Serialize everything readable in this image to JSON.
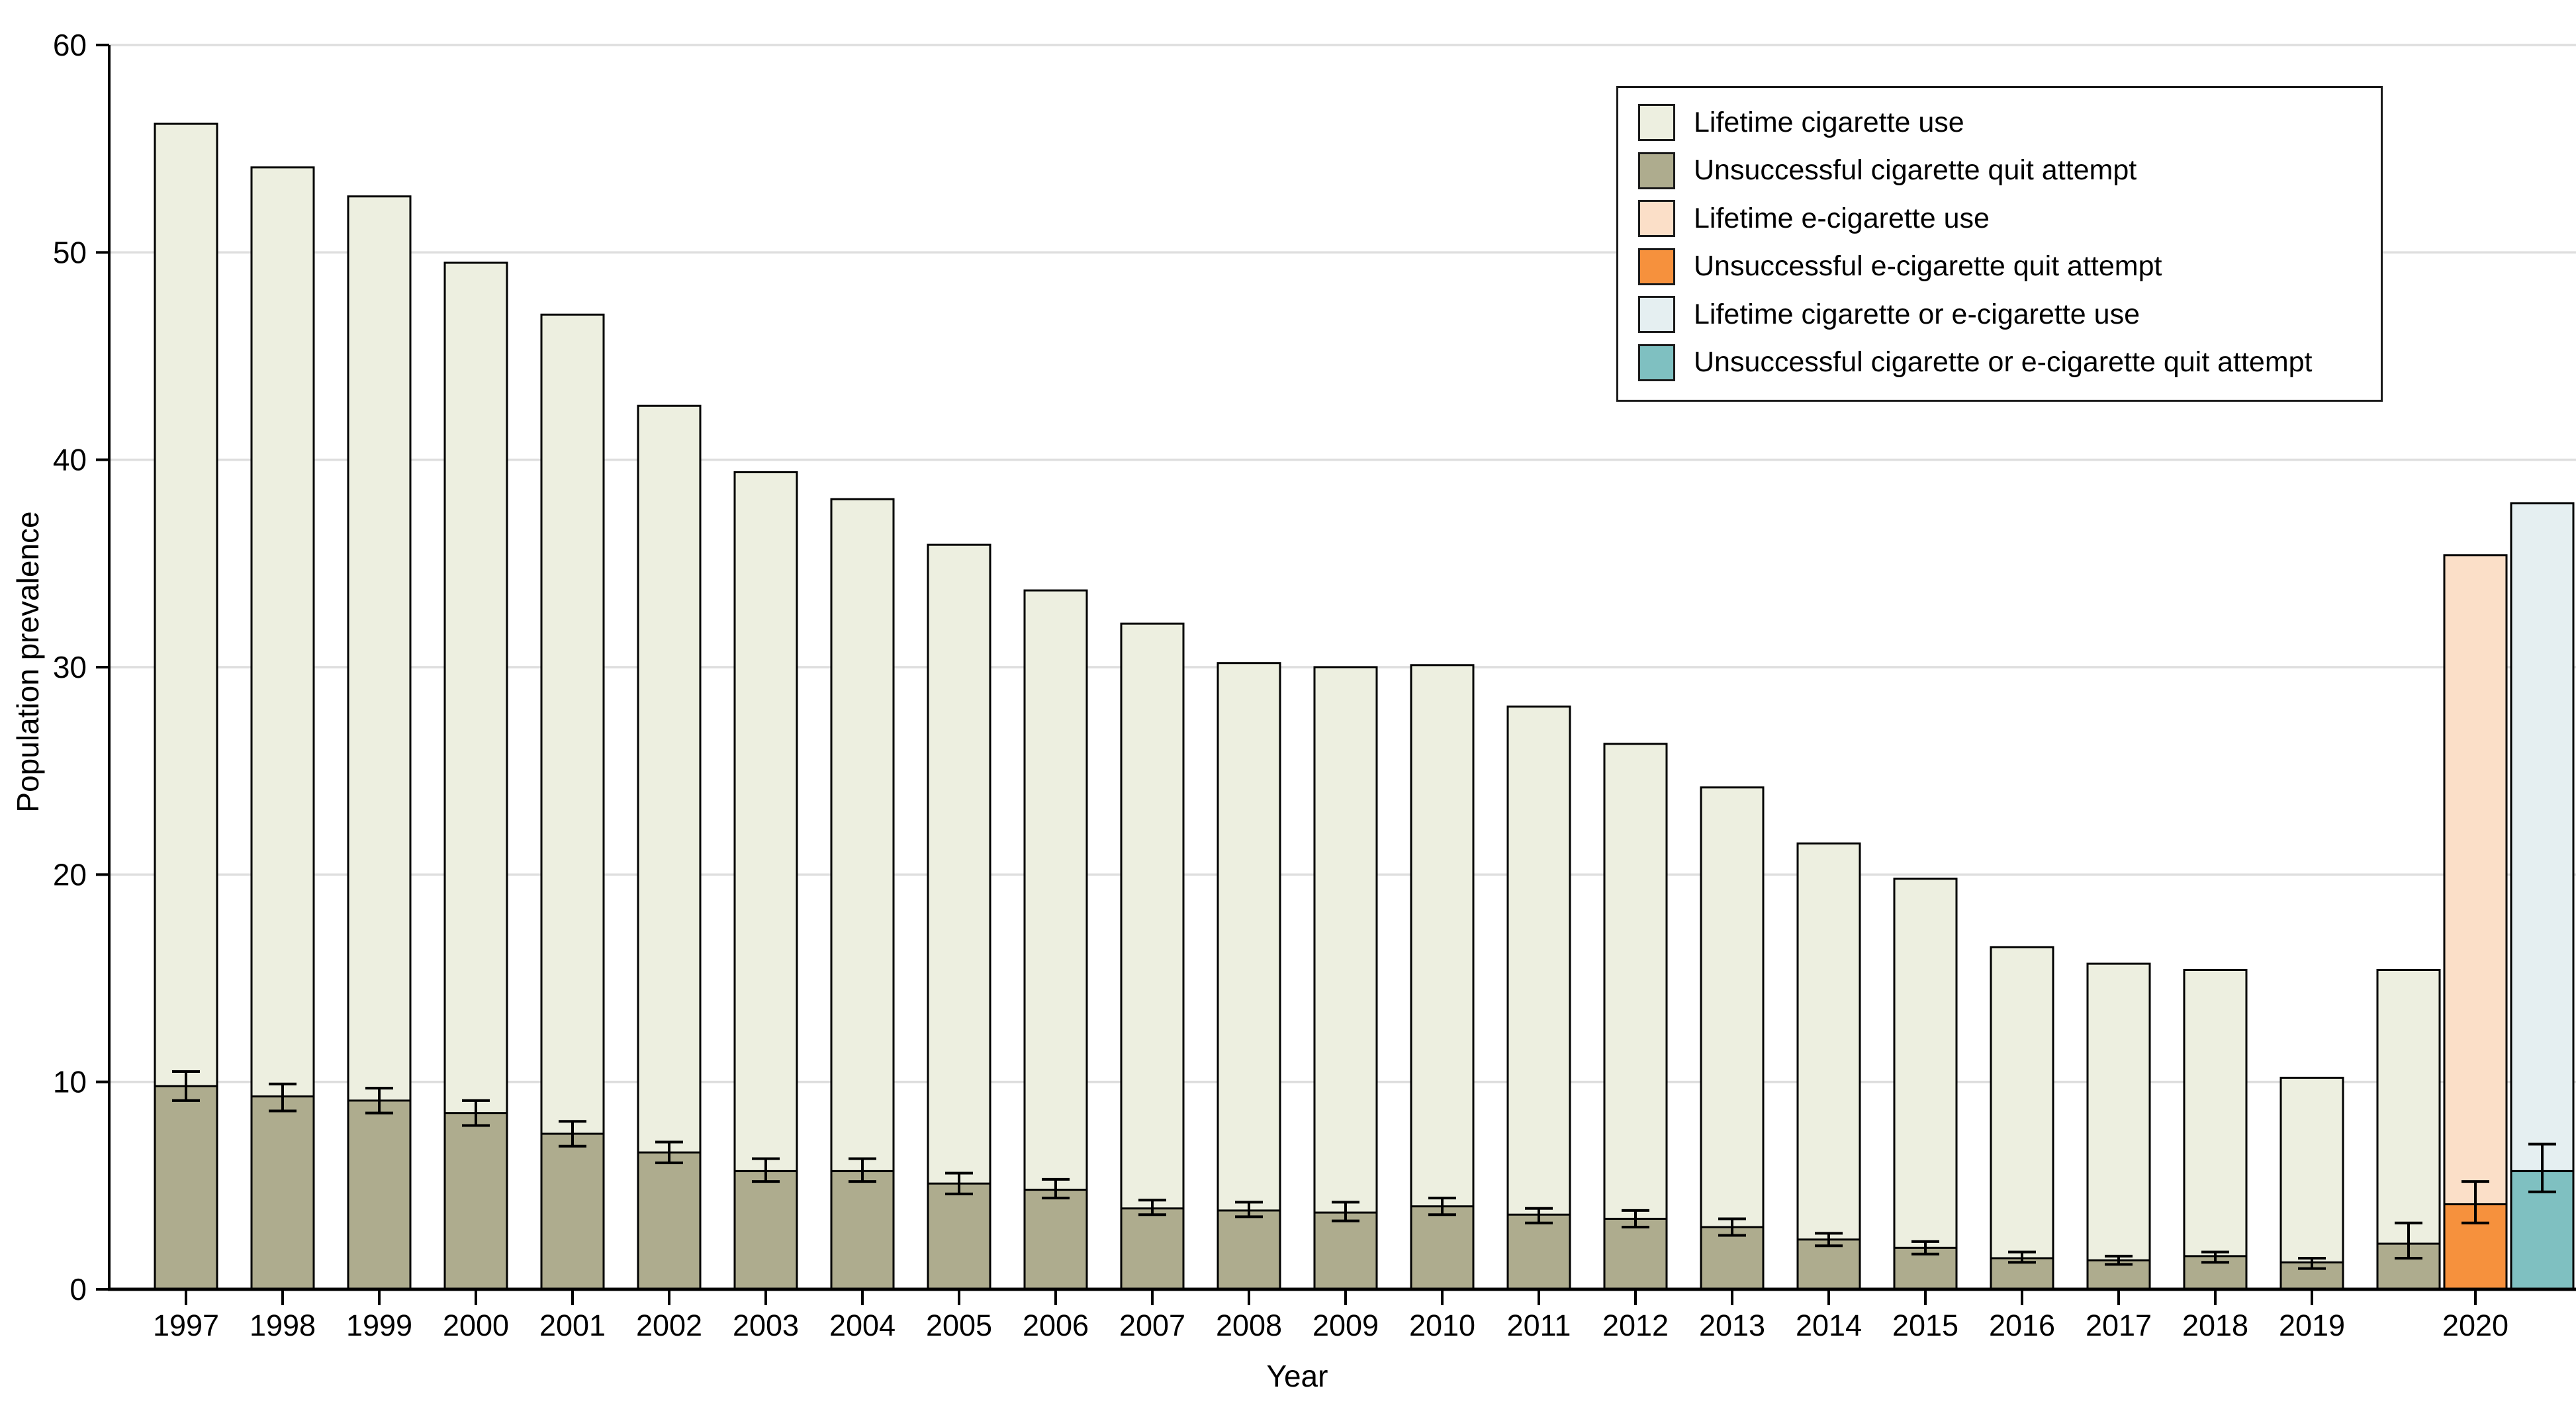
{
  "chart_data": {
    "type": "bar",
    "subtype": "stacked-with-error-bars",
    "title": "",
    "xlabel": "Year",
    "ylabel": "Population prevalence",
    "ylim": [
      0,
      60
    ],
    "yticks": [
      0,
      10,
      20,
      30,
      40,
      50,
      60
    ],
    "grid": true,
    "legend_position": "top-right",
    "categories": [
      "1997",
      "1998",
      "1999",
      "2000",
      "2001",
      "2002",
      "2003",
      "2004",
      "2005",
      "2006",
      "2007",
      "2008",
      "2009",
      "2010",
      "2011",
      "2012",
      "2013",
      "2014",
      "2015",
      "2016",
      "2017",
      "2018",
      "2019",
      "2020"
    ],
    "legend": [
      {
        "label": "Lifetime cigarette use",
        "color": "#EDEFE0"
      },
      {
        "label": "Unsuccessful cigarette quit attempt",
        "color": "#AEAC8E"
      },
      {
        "label": "Lifetime e-cigarette use",
        "color": "#FBDFC8"
      },
      {
        "label": "Unsuccessful e-cigarette quit attempt",
        "color": "#F6913D"
      },
      {
        "label": "Lifetime cigarette or e-cigarette use",
        "color": "#E5EFF1"
      },
      {
        "label": "Unsuccessful cigarette or e-cigarette quit attempt",
        "color": "#7FC0C1"
      }
    ],
    "bars": [
      {
        "year": "1997",
        "group": "cigarette",
        "lifetime_use": 56.2,
        "unsuccessful_quit": 9.8,
        "quit_ci": [
          9.1,
          10.5
        ]
      },
      {
        "year": "1998",
        "group": "cigarette",
        "lifetime_use": 54.1,
        "unsuccessful_quit": 9.3,
        "quit_ci": [
          8.6,
          9.9
        ]
      },
      {
        "year": "1999",
        "group": "cigarette",
        "lifetime_use": 52.7,
        "unsuccessful_quit": 9.1,
        "quit_ci": [
          8.5,
          9.7
        ]
      },
      {
        "year": "2000",
        "group": "cigarette",
        "lifetime_use": 49.5,
        "unsuccessful_quit": 8.5,
        "quit_ci": [
          7.9,
          9.1
        ]
      },
      {
        "year": "2001",
        "group": "cigarette",
        "lifetime_use": 47.0,
        "unsuccessful_quit": 7.5,
        "quit_ci": [
          6.9,
          8.1
        ]
      },
      {
        "year": "2002",
        "group": "cigarette",
        "lifetime_use": 42.6,
        "unsuccessful_quit": 6.6,
        "quit_ci": [
          6.1,
          7.1
        ]
      },
      {
        "year": "2003",
        "group": "cigarette",
        "lifetime_use": 39.4,
        "unsuccessful_quit": 5.7,
        "quit_ci": [
          5.2,
          6.3
        ]
      },
      {
        "year": "2004",
        "group": "cigarette",
        "lifetime_use": 38.1,
        "unsuccessful_quit": 5.7,
        "quit_ci": [
          5.2,
          6.3
        ]
      },
      {
        "year": "2005",
        "group": "cigarette",
        "lifetime_use": 35.9,
        "unsuccessful_quit": 5.1,
        "quit_ci": [
          4.6,
          5.6
        ]
      },
      {
        "year": "2006",
        "group": "cigarette",
        "lifetime_use": 33.7,
        "unsuccessful_quit": 4.8,
        "quit_ci": [
          4.4,
          5.3
        ]
      },
      {
        "year": "2007",
        "group": "cigarette",
        "lifetime_use": 32.1,
        "unsuccessful_quit": 3.9,
        "quit_ci": [
          3.6,
          4.3
        ]
      },
      {
        "year": "2008",
        "group": "cigarette",
        "lifetime_use": 30.2,
        "unsuccessful_quit": 3.8,
        "quit_ci": [
          3.5,
          4.2
        ]
      },
      {
        "year": "2009",
        "group": "cigarette",
        "lifetime_use": 30.0,
        "unsuccessful_quit": 3.7,
        "quit_ci": [
          3.3,
          4.2
        ]
      },
      {
        "year": "2010",
        "group": "cigarette",
        "lifetime_use": 30.1,
        "unsuccessful_quit": 4.0,
        "quit_ci": [
          3.6,
          4.4
        ]
      },
      {
        "year": "2011",
        "group": "cigarette",
        "lifetime_use": 28.1,
        "unsuccessful_quit": 3.6,
        "quit_ci": [
          3.2,
          3.9
        ]
      },
      {
        "year": "2012",
        "group": "cigarette",
        "lifetime_use": 26.3,
        "unsuccessful_quit": 3.4,
        "quit_ci": [
          3.0,
          3.8
        ]
      },
      {
        "year": "2013",
        "group": "cigarette",
        "lifetime_use": 24.2,
        "unsuccessful_quit": 3.0,
        "quit_ci": [
          2.6,
          3.4
        ]
      },
      {
        "year": "2014",
        "group": "cigarette",
        "lifetime_use": 21.5,
        "unsuccessful_quit": 2.4,
        "quit_ci": [
          2.1,
          2.7
        ]
      },
      {
        "year": "2015",
        "group": "cigarette",
        "lifetime_use": 19.8,
        "unsuccessful_quit": 2.0,
        "quit_ci": [
          1.7,
          2.3
        ]
      },
      {
        "year": "2016",
        "group": "cigarette",
        "lifetime_use": 16.5,
        "unsuccessful_quit": 1.5,
        "quit_ci": [
          1.3,
          1.8
        ]
      },
      {
        "year": "2017",
        "group": "cigarette",
        "lifetime_use": 15.7,
        "unsuccessful_quit": 1.4,
        "quit_ci": [
          1.2,
          1.6
        ]
      },
      {
        "year": "2018",
        "group": "cigarette",
        "lifetime_use": 15.4,
        "unsuccessful_quit": 1.6,
        "quit_ci": [
          1.3,
          1.8
        ]
      },
      {
        "year": "2019",
        "group": "cigarette",
        "lifetime_use": 10.2,
        "unsuccessful_quit": 1.3,
        "quit_ci": [
          1.0,
          1.5
        ]
      },
      {
        "year": "2020",
        "group": "cigarette",
        "lifetime_use": 15.4,
        "unsuccessful_quit": 2.2,
        "quit_ci": [
          1.5,
          3.2
        ]
      },
      {
        "year": "2020",
        "group": "e-cigarette",
        "lifetime_use": 35.4,
        "unsuccessful_quit": 4.1,
        "quit_ci": [
          3.2,
          5.2
        ]
      },
      {
        "year": "2020",
        "group": "cigarette-or-e-cigarette",
        "lifetime_use": 37.9,
        "unsuccessful_quit": 5.7,
        "quit_ci": [
          4.7,
          7.0
        ]
      }
    ],
    "axis_colors": {
      "axis": "#000000",
      "gridline": "#DEDEDE",
      "bar_outline": "#000000",
      "error_bar": "#000000"
    }
  }
}
